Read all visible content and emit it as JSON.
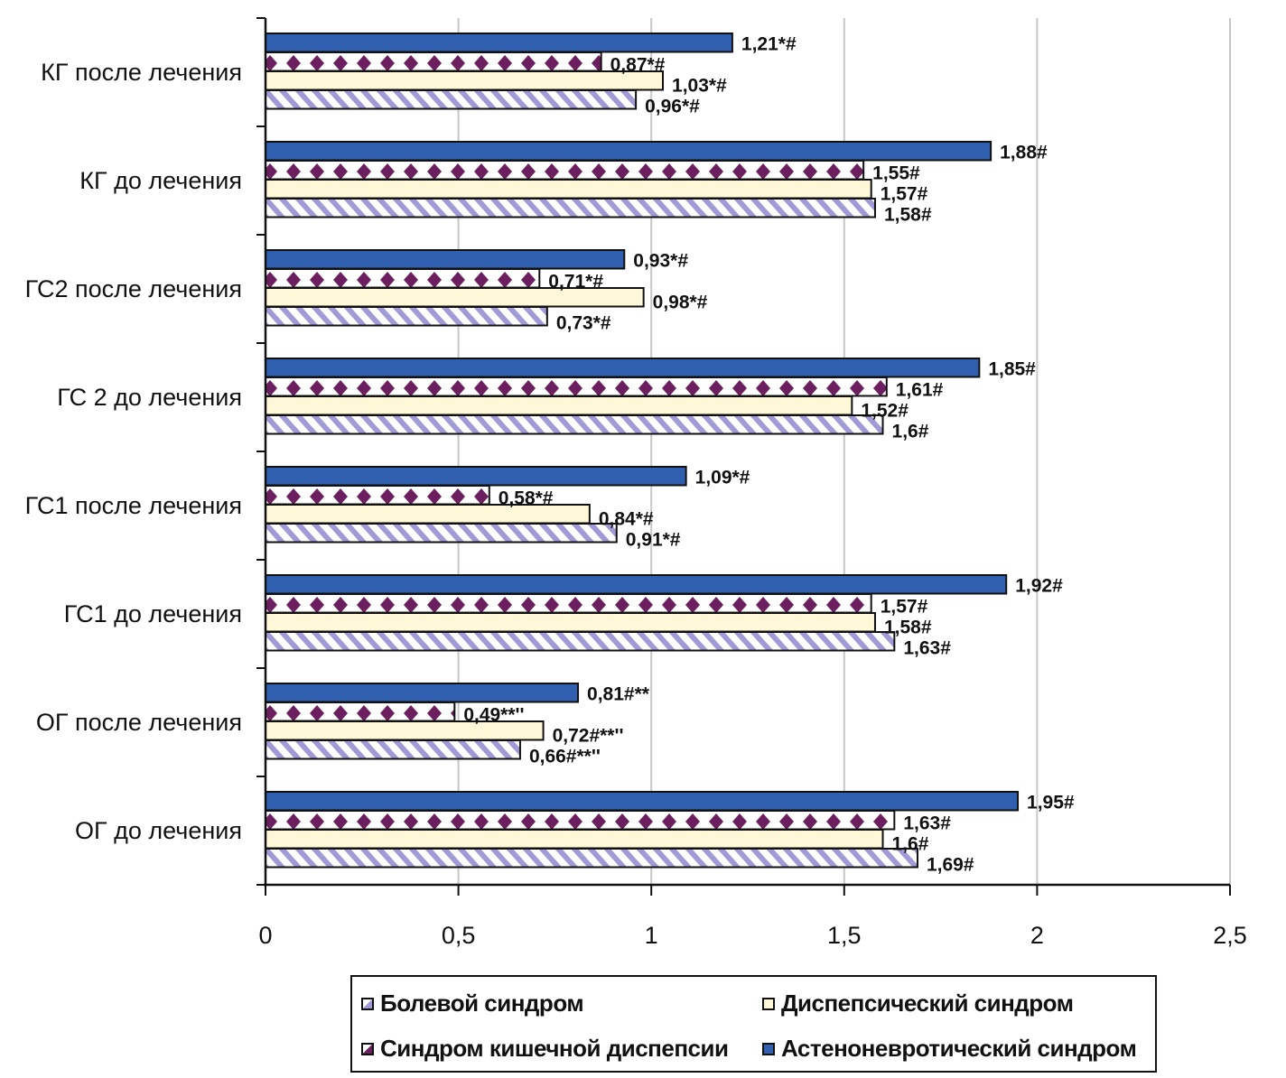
{
  "chart_data": {
    "type": "bar",
    "orientation": "horizontal",
    "title": "",
    "xlabel": "",
    "ylabel": "",
    "xlim": [
      0,
      2.5
    ],
    "x_ticks": [
      0,
      0.5,
      1,
      1.5,
      2,
      2.5
    ],
    "x_tick_labels": [
      "0",
      "0,5",
      "1",
      "1,5",
      "2",
      "2,5"
    ],
    "grid": "vertical",
    "categories": [
      "КГ после лечения",
      "КГ до лечения",
      "ГС2 после лечения",
      "ГС 2 до лечения",
      "ГС1 после лечения",
      "ГС1 до лечения",
      "ОГ после лечения",
      "ОГ до лечения"
    ],
    "series": [
      {
        "name": "Астеноневротический синдром",
        "color": "#2f5fae",
        "pattern": "solid",
        "values": [
          1.21,
          1.88,
          0.93,
          1.85,
          1.09,
          1.92,
          0.81,
          1.95
        ],
        "labels": [
          "1,21*#",
          "1,88#",
          "0,93*#",
          "1,85#",
          "1,09*#",
          "1,92#",
          "0,81#**",
          "1,95#"
        ]
      },
      {
        "name": "Синдром кишечной диспепсии",
        "color": "#6b1f5f",
        "pattern": "diamonds",
        "values": [
          0.87,
          1.55,
          0.71,
          1.61,
          0.58,
          1.57,
          0.49,
          1.63
        ],
        "labels": [
          "0,87*#",
          "1,55#",
          "0,71*#",
          "1,61#",
          "0,58*#",
          "1,57#",
          "0,49**''",
          "1,63#"
        ]
      },
      {
        "name": "Диспепсический синдром",
        "color": "#fff8d8",
        "pattern": "solid",
        "values": [
          1.03,
          1.57,
          0.98,
          1.52,
          0.84,
          1.58,
          0.72,
          1.6
        ],
        "labels": [
          "1,03*#",
          "1,57#",
          "0,98*#",
          "1,52#",
          "0,84*#",
          "1,58#",
          "0,72#**''",
          "1,6#"
        ]
      },
      {
        "name": "Болевой синдром",
        "color": "#a09ad6",
        "pattern": "diagonal-stripes",
        "values": [
          0.96,
          1.58,
          0.73,
          1.6,
          0.91,
          1.63,
          0.66,
          1.69
        ],
        "labels": [
          "0,96*#",
          "1,58#",
          "0,73*#",
          "1,6#",
          "0,91*#",
          "1,63#",
          "0,66#**''",
          "1,69#"
        ]
      }
    ],
    "legend": {
      "placement": "bottom",
      "entries": [
        {
          "label": "Болевой синдром",
          "series": "Болевой синдром"
        },
        {
          "label": "Диспепсический синдром",
          "series": "Диспепсический синдром"
        },
        {
          "label": "Синдром кишечной диспепсии",
          "series": "Синдром кишечной диспепсии"
        },
        {
          "label": "Астеноневротический синдром",
          "series": "Астеноневротический синдром"
        }
      ]
    }
  }
}
